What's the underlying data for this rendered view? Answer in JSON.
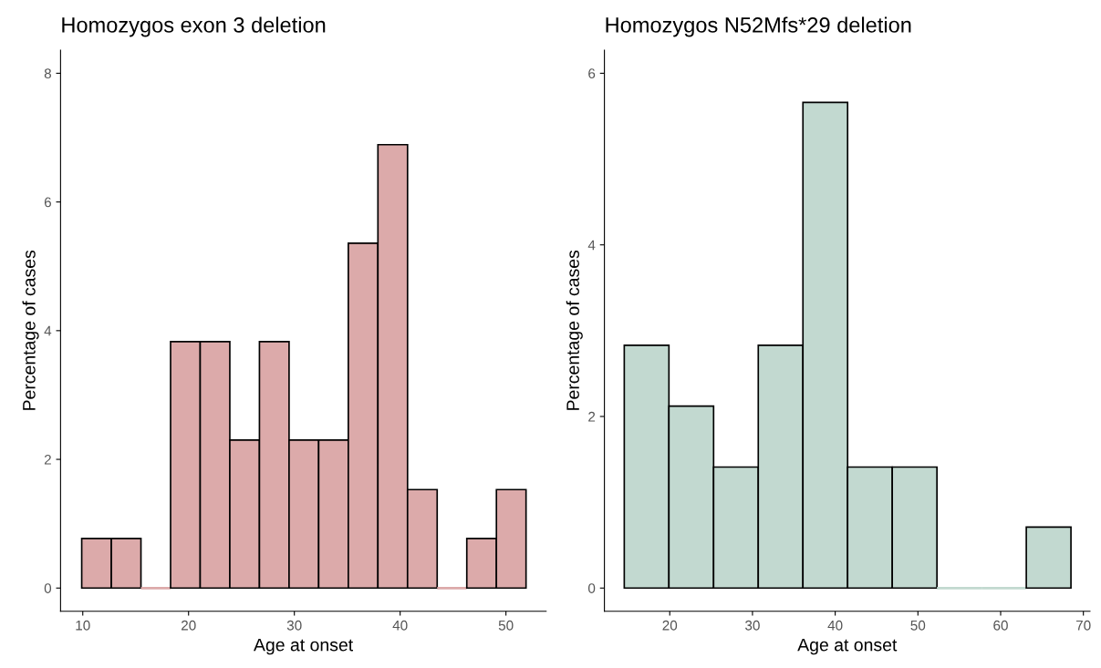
{
  "chart_data": [
    {
      "type": "histogram",
      "title": "Homozygos exon 3 deletion",
      "xlabel": "Age at onset",
      "ylabel": "Percentage of cases",
      "color": "#dcaaaa",
      "grid": false,
      "bins": [
        9.9,
        12.7,
        15.5,
        18.3,
        21.1,
        23.9,
        26.7,
        29.5,
        32.3,
        35.1,
        37.9,
        40.7,
        43.5,
        46.3,
        49.1,
        51.9
      ],
      "values": [
        0.77,
        0.77,
        0,
        3.83,
        3.83,
        2.3,
        3.83,
        2.3,
        2.3,
        5.36,
        6.89,
        1.53,
        0,
        0.77,
        1.53
      ],
      "xlim": [
        7.9,
        53.8
      ],
      "ylim": [
        -0.36,
        8.36
      ],
      "xticks": [
        10,
        20,
        30,
        40,
        50
      ],
      "yticks": [
        0,
        2,
        4,
        6,
        8
      ]
    },
    {
      "type": "histogram",
      "title": "Homozygos N52Mfs*29 deletion",
      "xlabel": "Age at onset",
      "ylabel": "Percentage of cases",
      "color": "#c2d9d0",
      "grid": false,
      "bins": [
        14.5,
        19.9,
        25.3,
        30.7,
        36.1,
        41.5,
        46.9,
        52.3,
        57.7,
        63.1,
        68.5
      ],
      "values": [
        2.83,
        2.12,
        1.41,
        2.83,
        5.66,
        1.41,
        1.41,
        0,
        0,
        0.71
      ],
      "xlim": [
        12.1,
        70.8
      ],
      "ylim": [
        -0.27,
        6.27
      ],
      "xticks": [
        20,
        30,
        40,
        50,
        60,
        70
      ],
      "yticks": [
        0,
        2,
        4,
        6
      ]
    }
  ]
}
